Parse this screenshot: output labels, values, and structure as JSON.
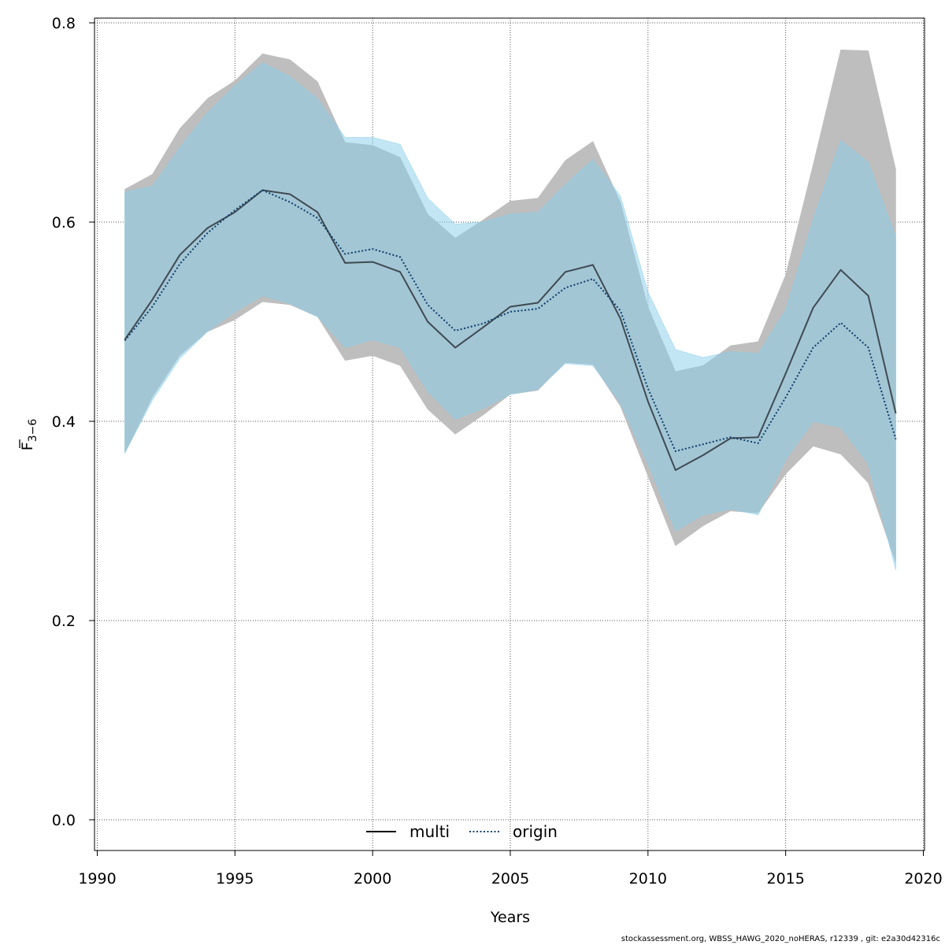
{
  "credit": "stockassessment.org, WBSS_HAWG_2020_noHERAS, r12339 , git: e2a30d42316c",
  "chart_data": {
    "type": "line",
    "xlabel": "Years",
    "ylabel_main": "F",
    "ylabel_sub": "3−6",
    "xlim": [
      1990,
      2020
    ],
    "ylim": [
      0.0,
      0.8
    ],
    "xticks": [
      1990,
      1995,
      2000,
      2005,
      2010,
      2015,
      2020
    ],
    "yticks": [
      0.0,
      0.2,
      0.4,
      0.6,
      0.8
    ],
    "xtick_labels": [
      "1990",
      "1995",
      "2000",
      "2005",
      "2010",
      "2015",
      "2020"
    ],
    "ytick_labels": [
      "0.0",
      "0.2",
      "0.4",
      "0.6",
      "0.8"
    ],
    "grid": true,
    "legend_position": "bottom-center",
    "x": [
      1991,
      1992,
      1993,
      1994,
      1995,
      1996,
      1997,
      1998,
      1999,
      2000,
      2001,
      2002,
      2003,
      2004,
      2005,
      2006,
      2007,
      2008,
      2009,
      2010,
      2011,
      2012,
      2013,
      2014,
      2015,
      2016,
      2017,
      2018,
      2019
    ],
    "series": [
      {
        "name": "multi",
        "line_style": "solid",
        "line_color": "#3f4a52",
        "band_color": "#bebebe",
        "values": [
          0.482,
          0.522,
          0.567,
          0.594,
          0.61,
          0.632,
          0.628,
          0.61,
          0.559,
          0.56,
          0.55,
          0.5,
          0.474,
          0.494,
          0.515,
          0.519,
          0.55,
          0.557,
          0.503,
          0.42,
          0.351,
          0.366,
          0.383,
          0.384,
          0.448,
          0.514,
          0.552,
          0.526,
          0.408
        ],
        "lower": [
          0.368,
          0.424,
          0.466,
          0.49,
          0.502,
          0.52,
          0.517,
          0.505,
          0.461,
          0.466,
          0.456,
          0.412,
          0.387,
          0.406,
          0.427,
          0.431,
          0.459,
          0.457,
          0.415,
          0.345,
          0.275,
          0.295,
          0.31,
          0.308,
          0.347,
          0.375,
          0.367,
          0.338,
          0.258
        ],
        "upper": [
          0.633,
          0.648,
          0.694,
          0.724,
          0.742,
          0.769,
          0.763,
          0.741,
          0.68,
          0.677,
          0.665,
          0.608,
          0.584,
          0.602,
          0.621,
          0.624,
          0.662,
          0.681,
          0.62,
          0.515,
          0.45,
          0.456,
          0.476,
          0.48,
          0.547,
          0.658,
          0.773,
          0.772,
          0.653
        ]
      },
      {
        "name": "origin",
        "line_style": "dotted",
        "line_color": "#0c3d6b",
        "band_color": "#87ceeb",
        "values": [
          0.481,
          0.515,
          0.558,
          0.589,
          0.612,
          0.632,
          0.62,
          0.604,
          0.568,
          0.573,
          0.565,
          0.517,
          0.491,
          0.498,
          0.51,
          0.513,
          0.534,
          0.543,
          0.511,
          0.433,
          0.37,
          0.377,
          0.384,
          0.378,
          0.424,
          0.474,
          0.499,
          0.474,
          0.382
        ],
        "lower": [
          0.368,
          0.421,
          0.463,
          0.49,
          0.51,
          0.526,
          0.518,
          0.505,
          0.474,
          0.482,
          0.474,
          0.43,
          0.402,
          0.413,
          0.427,
          0.432,
          0.458,
          0.456,
          0.418,
          0.357,
          0.29,
          0.306,
          0.312,
          0.306,
          0.361,
          0.4,
          0.394,
          0.357,
          0.251
        ],
        "upper": [
          0.63,
          0.636,
          0.675,
          0.71,
          0.737,
          0.76,
          0.746,
          0.724,
          0.685,
          0.685,
          0.678,
          0.624,
          0.598,
          0.6,
          0.608,
          0.61,
          0.638,
          0.663,
          0.626,
          0.53,
          0.472,
          0.464,
          0.47,
          0.468,
          0.512,
          0.603,
          0.682,
          0.66,
          0.585
        ]
      }
    ]
  }
}
